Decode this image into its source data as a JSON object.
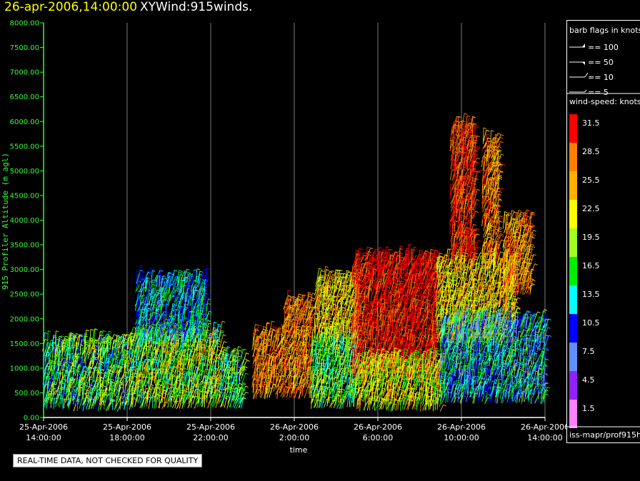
{
  "header": {
    "date_label": "26-apr-2006,14:00:00",
    "title": "XYWind:915winds."
  },
  "footer_note": "REAL-TIME DATA, NOT CHECKED FOR QUALITY",
  "legend": {
    "barb_title": "barb flags in knots",
    "barb_entries": [
      "== 100",
      "== 50",
      "== 10",
      "== 5"
    ],
    "speed_title": "wind-speed: knots",
    "speed_levels": [
      {
        "label": "31.5",
        "color": "#ff0000"
      },
      {
        "label": "28.5",
        "color": "#ff8000"
      },
      {
        "label": "25.5",
        "color": "#ffb000"
      },
      {
        "label": "22.5",
        "color": "#ffff00"
      },
      {
        "label": "19.5",
        "color": "#a0ff20"
      },
      {
        "label": "16.5",
        "color": "#00ee00"
      },
      {
        "label": "13.5",
        "color": "#00ffff"
      },
      {
        "label": "10.5",
        "color": "#0000ff"
      },
      {
        "label": "7.5",
        "color": "#6090ff"
      },
      {
        "label": "4.5",
        "color": "#9020ff"
      },
      {
        "label": "1.5",
        "color": "#ff80ff"
      }
    ],
    "source": "iss-mapr/prof915h"
  },
  "chart_data": {
    "type": "scatter",
    "title": "XYWind:915winds.",
    "xlabel": "time",
    "ylabel": "915 Profiler Altitude (m agl)",
    "ylim": [
      0,
      8000
    ],
    "yticks": [
      "0.00",
      "500.00",
      "1000.00",
      "1500.00",
      "2000.00",
      "2500.00",
      "3000.00",
      "3500.00",
      "4000.00",
      "4500.00",
      "5000.00",
      "5500.00",
      "6000.00",
      "6500.00",
      "7000.00",
      "7500.00",
      "8000.00"
    ],
    "xticks": [
      {
        "date": "25-Apr-2006",
        "time": "14:00:00",
        "hours": 0
      },
      {
        "date": "25-Apr-2006",
        "time": "18:00:00",
        "hours": 4
      },
      {
        "date": "25-Apr-2006",
        "time": "22:00:00",
        "hours": 8
      },
      {
        "date": "26-Apr-2006",
        "time": "2:00:00",
        "hours": 12
      },
      {
        "date": "26-Apr-2006",
        "time": "6:00:00",
        "hours": 16
      },
      {
        "date": "26-Apr-2006",
        "time": "10:00:00",
        "hours": 20
      },
      {
        "date": "26-Apr-2006",
        "time": "14:00:00",
        "hours": 24
      }
    ],
    "xlim_hours": [
      0,
      24
    ],
    "grid": "vertical",
    "regions": [
      {
        "t0": 0.0,
        "t1": 1.2,
        "z0": 200,
        "z1": 1500,
        "speed": 16,
        "spread": 6
      },
      {
        "t0": 1.2,
        "t1": 4.2,
        "z0": 150,
        "z1": 1500,
        "speed": 17,
        "spread": 7
      },
      {
        "t0": 4.2,
        "t1": 8.5,
        "z0": 200,
        "z1": 1700,
        "speed": 20,
        "spread": 7
      },
      {
        "t0": 4.4,
        "t1": 7.8,
        "z0": 1500,
        "z1": 2800,
        "speed": 13,
        "spread": 5
      },
      {
        "t0": 8.5,
        "t1": 9.5,
        "z0": 200,
        "z1": 1200,
        "speed": 17,
        "spread": 6
      },
      {
        "t0": 10.0,
        "t1": 12.8,
        "z0": 400,
        "z1": 1700,
        "speed": 27,
        "spread": 4
      },
      {
        "t0": 11.5,
        "t1": 12.8,
        "z0": 1700,
        "z1": 2300,
        "speed": 28,
        "spread": 3
      },
      {
        "t0": 12.8,
        "t1": 15.0,
        "z0": 200,
        "z1": 1600,
        "speed": 18,
        "spread": 6
      },
      {
        "t0": 13.0,
        "t1": 15.0,
        "z0": 1600,
        "z1": 2800,
        "speed": 24,
        "spread": 5
      },
      {
        "t0": 14.8,
        "t1": 18.8,
        "z0": 800,
        "z1": 3200,
        "speed": 31,
        "spread": 2
      },
      {
        "t0": 15.0,
        "t1": 19.0,
        "z0": 150,
        "z1": 1100,
        "speed": 22,
        "spread": 6
      },
      {
        "t0": 18.8,
        "t1": 22.5,
        "z0": 1500,
        "z1": 3200,
        "speed": 24,
        "spread": 5
      },
      {
        "t0": 19.5,
        "t1": 20.6,
        "z0": 3200,
        "z1": 5900,
        "speed": 30,
        "spread": 3
      },
      {
        "t0": 21.0,
        "t1": 21.8,
        "z0": 3000,
        "z1": 5600,
        "speed": 27,
        "spread": 4
      },
      {
        "t0": 22.0,
        "t1": 23.3,
        "z0": 2500,
        "z1": 4000,
        "speed": 27,
        "spread": 4
      },
      {
        "t0": 19.0,
        "t1": 24.0,
        "z0": 300,
        "z1": 2000,
        "speed": 13,
        "spread": 6
      }
    ]
  }
}
